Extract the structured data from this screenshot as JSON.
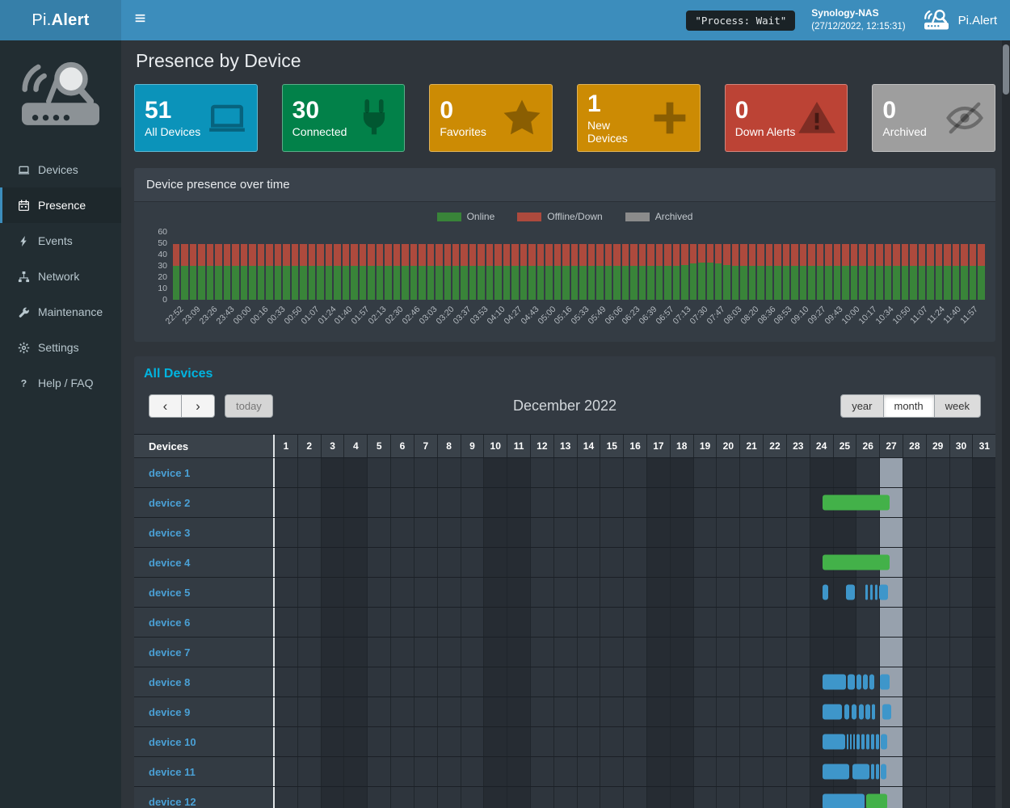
{
  "navbar": {
    "brand": {
      "prefix": "Pi.",
      "suffix": "Alert"
    },
    "process_badge": "\"Process: Wait\"",
    "host_name": "Synology-NAS",
    "host_time": "(27/12/2022, 12:15:31)",
    "right_brand": "Pi.Alert"
  },
  "sidebar": {
    "items": [
      {
        "label": "Devices",
        "icon": "laptop",
        "active": false
      },
      {
        "label": "Presence",
        "icon": "calendar",
        "active": true
      },
      {
        "label": "Events",
        "icon": "bolt",
        "active": false
      },
      {
        "label": "Network",
        "icon": "network",
        "active": false
      },
      {
        "label": "Maintenance",
        "icon": "wrench",
        "active": false
      },
      {
        "label": "Settings",
        "icon": "gear",
        "active": false
      },
      {
        "label": "Help / FAQ",
        "icon": "question",
        "active": false
      }
    ]
  },
  "page": {
    "title": "Presence by Device"
  },
  "infoboxes": [
    {
      "value": "51",
      "label": "All Devices",
      "color": "#0b93ba",
      "icon": "laptop"
    },
    {
      "value": "30",
      "label": "Connected",
      "color": "#028149",
      "icon": "plug"
    },
    {
      "value": "0",
      "label": "Favorites",
      "color": "#cc8b04",
      "icon": "star"
    },
    {
      "value": "1",
      "label": "New Devices",
      "color": "#cc8b04",
      "icon": "plus"
    },
    {
      "value": "0",
      "label": "Down Alerts",
      "color": "#bc4335",
      "icon": "warning"
    },
    {
      "value": "0",
      "label": "Archived",
      "color": "#9e9e9e",
      "icon": "eye-slash"
    }
  ],
  "presence_panel": {
    "title": "Device presence over time",
    "legend": [
      {
        "label": "Online",
        "color": "#398439"
      },
      {
        "label": "Offline/Down",
        "color": "#ad4a3d"
      },
      {
        "label": "Archived",
        "color": "#8b8b8b"
      }
    ]
  },
  "chart_data": {
    "type": "bar",
    "stacked": true,
    "title": "Device presence over time",
    "ylim": [
      0,
      60
    ],
    "y_ticks": [
      0,
      10,
      20,
      30,
      40,
      50,
      60
    ],
    "bars_per_tick": 2,
    "x_tick_labels": [
      "22:52",
      "23:09",
      "23:26",
      "23:43",
      "00:00",
      "00:16",
      "00:33",
      "00:50",
      "01:07",
      "01:24",
      "01:40",
      "01:57",
      "02:13",
      "02:30",
      "02:46",
      "03:03",
      "03:20",
      "03:37",
      "03:53",
      "04:10",
      "04:27",
      "04:43",
      "05:00",
      "05:16",
      "05:33",
      "05:49",
      "06:06",
      "06:23",
      "06:39",
      "06:57",
      "07:13",
      "07:30",
      "07:47",
      "08:03",
      "08:20",
      "08:36",
      "08:53",
      "09:10",
      "09:27",
      "09:43",
      "10:00",
      "10:17",
      "10:34",
      "10:50",
      "11:07",
      "11:24",
      "11:40",
      "11:57"
    ],
    "series": [
      {
        "name": "Online",
        "color": "#398439",
        "values": [
          30,
          30,
          30,
          30,
          30,
          30,
          30,
          30,
          30,
          30,
          30,
          30,
          30,
          30,
          30,
          30,
          30,
          30,
          30,
          30,
          30,
          30,
          30,
          30,
          30,
          30,
          30,
          30,
          30,
          30,
          30,
          30,
          30,
          30,
          30,
          30,
          30,
          30,
          30,
          30,
          30,
          30,
          30,
          30,
          30,
          30,
          30,
          30,
          30,
          30,
          30,
          30,
          30,
          30,
          30,
          30,
          30,
          30,
          30,
          30,
          31,
          32,
          33,
          33,
          32,
          31,
          30,
          30,
          30,
          30,
          30,
          30,
          30,
          30,
          30,
          30,
          30,
          30,
          30,
          30,
          30,
          30,
          30,
          30,
          30,
          30,
          30,
          30,
          30,
          30,
          30,
          30,
          30,
          30,
          30,
          30
        ]
      },
      {
        "name": "Offline/Down",
        "color": "#ad4a3d",
        "values": [
          19,
          19,
          19,
          19,
          19,
          19,
          19,
          19,
          19,
          19,
          19,
          19,
          19,
          19,
          19,
          19,
          19,
          19,
          19,
          19,
          19,
          19,
          19,
          19,
          19,
          19,
          19,
          19,
          19,
          19,
          19,
          19,
          19,
          19,
          19,
          19,
          19,
          19,
          19,
          19,
          19,
          19,
          19,
          19,
          19,
          19,
          19,
          19,
          19,
          19,
          19,
          19,
          19,
          19,
          19,
          19,
          19,
          19,
          19,
          19,
          18,
          17,
          16,
          16,
          17,
          18,
          19,
          19,
          19,
          19,
          19,
          19,
          19,
          19,
          19,
          19,
          19,
          19,
          19,
          19,
          19,
          19,
          19,
          19,
          19,
          19,
          19,
          19,
          19,
          19,
          19,
          19,
          19,
          19,
          19,
          19
        ]
      },
      {
        "name": "Archived",
        "color": "#8b8b8b",
        "values": []
      }
    ]
  },
  "calendar": {
    "title": "All Devices",
    "toolbar": {
      "prev_icon": "‹",
      "next_icon": "›",
      "today_label": "today",
      "month_title": "December 2022",
      "view_labels": [
        "year",
        "month",
        "week"
      ],
      "active_view": "month"
    },
    "devices_header": "Devices",
    "days": [
      1,
      2,
      3,
      4,
      5,
      6,
      7,
      8,
      9,
      10,
      11,
      12,
      13,
      14,
      15,
      16,
      17,
      18,
      19,
      20,
      21,
      22,
      23,
      24,
      25,
      26,
      27,
      28,
      29,
      30,
      31
    ],
    "weekend_days": [
      3,
      4,
      10,
      11,
      17,
      18,
      24,
      25,
      31
    ],
    "today": 27,
    "colors": {
      "g": "#43b149",
      "b": "#3e96ca"
    },
    "rows": [
      {
        "name": "device 1",
        "segments": []
      },
      {
        "name": "device 2",
        "segments": [
          [
            24.55,
            27.45,
            "g"
          ]
        ]
      },
      {
        "name": "device 3",
        "segments": []
      },
      {
        "name": "device 4",
        "segments": [
          [
            24.55,
            27.45,
            "g"
          ]
        ]
      },
      {
        "name": "device 5",
        "segments": [
          [
            24.58,
            24.82,
            "b"
          ],
          [
            25.56,
            25.95,
            "b"
          ],
          [
            26.4,
            26.51,
            "b"
          ],
          [
            26.61,
            26.72,
            "b"
          ],
          [
            26.82,
            26.93,
            "b"
          ],
          [
            27.0,
            27.39,
            "b"
          ]
        ]
      },
      {
        "name": "device 6",
        "segments": []
      },
      {
        "name": "device 7",
        "segments": []
      },
      {
        "name": "device 8",
        "segments": [
          [
            24.58,
            25.56,
            "b"
          ],
          [
            25.63,
            25.95,
            "b"
          ],
          [
            26.02,
            26.23,
            "b"
          ],
          [
            26.3,
            26.51,
            "b"
          ],
          [
            26.58,
            26.79,
            "b"
          ],
          [
            27.04,
            27.46,
            "b"
          ]
        ]
      },
      {
        "name": "device 9",
        "segments": [
          [
            24.58,
            25.39,
            "b"
          ],
          [
            25.49,
            25.7,
            "b"
          ],
          [
            25.81,
            26.02,
            "b"
          ],
          [
            26.12,
            26.33,
            "b"
          ],
          [
            26.4,
            26.61,
            "b"
          ],
          [
            26.68,
            26.82,
            "b"
          ],
          [
            27.14,
            27.53,
            "b"
          ]
        ]
      },
      {
        "name": "device 10",
        "segments": [
          [
            24.58,
            25.52,
            "b"
          ],
          [
            25.59,
            25.66,
            "b"
          ],
          [
            25.73,
            25.8,
            "b"
          ],
          [
            25.87,
            25.94,
            "b"
          ],
          [
            26.02,
            26.16,
            "b"
          ],
          [
            26.23,
            26.37,
            "b"
          ],
          [
            26.44,
            26.58,
            "b"
          ],
          [
            26.65,
            26.79,
            "b"
          ],
          [
            26.86,
            27.0,
            "b"
          ],
          [
            27.07,
            27.35,
            "b"
          ]
        ]
      },
      {
        "name": "device 11",
        "segments": [
          [
            24.58,
            25.7,
            "b"
          ],
          [
            25.84,
            26.58,
            "b"
          ],
          [
            26.65,
            26.79,
            "b"
          ],
          [
            26.86,
            27.0,
            "b"
          ],
          [
            27.07,
            27.32,
            "b"
          ]
        ]
      },
      {
        "name": "device 12",
        "segments": [
          [
            24.58,
            26.37,
            "b"
          ],
          [
            26.44,
            27.35,
            "g"
          ]
        ]
      }
    ]
  }
}
